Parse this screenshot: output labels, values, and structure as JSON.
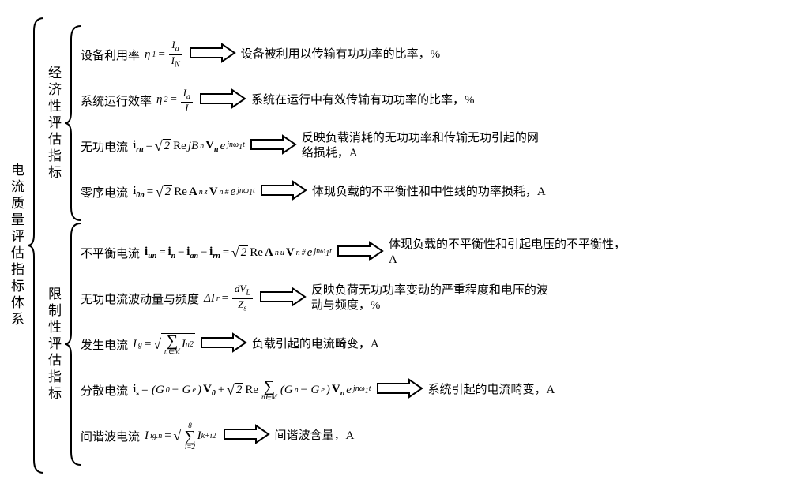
{
  "root_label": "电流质量评估指标体系",
  "arrow": {
    "width": 60,
    "height": 26,
    "stroke": "#000000",
    "stroke_width": 2,
    "fill": "#ffffff"
  },
  "brace": {
    "stroke": "#000000",
    "stroke_width": 2
  },
  "groups": [
    {
      "label": "经济性评估指标",
      "brace_height": 250,
      "rows": [
        {
          "label": "设备利用率",
          "formula_html": "η<sub>1</sub> = <span class='frac'><span class='num'>I<sub>a</sub></span><span class='den'>I<sub>N</sub></span></span>",
          "description": "设备被利用以传输有功功率的比率，%"
        },
        {
          "label": "系统运行效率",
          "formula_html": "η<sub>2</sub> = <span class='frac'><span class='num'>I<sub>a</sub></span><span class='den'>I</span></span>",
          "description": "系统在运行中有效传输有功功率的比率，%"
        },
        {
          "label": "无功电流",
          "formula_html": "<span class='bold'>i<sub>rn</sub></span> = <span class='sqrt'><span class='rad'>2</span></span> <span class='rm'>Re</span> jB<sub>n</sub><span class='bold'>V<sub>n</sub></span> e<sup>jnω<sub>1</sub>t</sup>",
          "description": "反映负载消耗的无功功率和传输无功引起的网络损耗，A"
        },
        {
          "label": "零序电流",
          "formula_html": "<span class='bold'>i<sub>0n</sub></span> = <span class='sqrt'><span class='rad'>2</span></span> <span class='rm'>Re</span> <span class='bold'>A</span><sub>n</sub><sup>z</sup><span class='bold'>V</span><sub>n</sub><sup>#</sup> e<sup>jnω<sub>1</sub>t</sup>",
          "description": "体现负载的不平衡性和中性线的功率损耗，A"
        }
      ]
    },
    {
      "label": "限制性评估指标",
      "brace_height": 310,
      "rows": [
        {
          "label": "不平衡电流",
          "formula_html": "<span class='bold'>i<sub>un</sub></span>=<span class='bold'>i<sub>n</sub></span> −<span class='bold'>i<sub>an</sub></span> −<span class='bold'>i<sub>rn</sub></span> = <span class='sqrt'><span class='rad'>2</span></span> <span class='rm'>Re</span> <span class='bold'>A</span><sub>n</sub><sup>u</sup><span class='bold'>V</span><sub>n</sub><sup>#</sup> e<sup>jnω<sub>1</sub>t</sup>",
          "description": "体现负载的不平衡性和引起电压的不平衡性，A"
        },
        {
          "label": "无功电流波动量与频度",
          "formula_html": "ΔI<sub>r</sub> = <span class='frac'><span class='num'>dV<sub>L</sub></span><span class='den'>Z<sub>s</sub></span></span>",
          "description": "反映负荷无功功率变动的严重程度和电压的波动与频度，%"
        },
        {
          "label": "发生电流",
          "formula_html": "I<sub>g</sub> = <span class='sqrt'><span class='rad'><span class='bigop'><span class='top'></span><span class='mid'>∑</span><span class='bot'>n∈M</span></span> I<sub>n</sub><sup>2</sup></span></span>",
          "description": "负载引起的电流畸变，A"
        },
        {
          "label": "分散电流",
          "formula_html": "<span class='bold'>i<sub>s</sub></span> = (G<sub>0</sub> − G<sub>e</sub>)<span class='bold'>V<sub>0</sub></span> + <span class='sqrt'><span class='rad'>2</span></span> <span class='rm'>Re</span> <span class='bigop'><span class='top'></span><span class='mid'>∑</span><span class='bot'>n∈M</span></span> (G<sub>n</sub> − G<sub>e</sub>)<span class='bold'>V<sub>n</sub></span> e<sup>jnω<sub>1</sub>t</sup>",
          "description": "系统引起的电流畸变，A"
        },
        {
          "label": "间谐波电流",
          "formula_html": "I<sub>ig.n</sub> = <span class='sqrt'><span class='rad'><span class='bigop'><span class='top'>8</span><span class='mid'>∑</span><span class='bot'>i=2</span></span> I<sub>k+i</sub><sup>2</sup></span></span>",
          "description": "间谐波含量，A"
        }
      ]
    }
  ]
}
